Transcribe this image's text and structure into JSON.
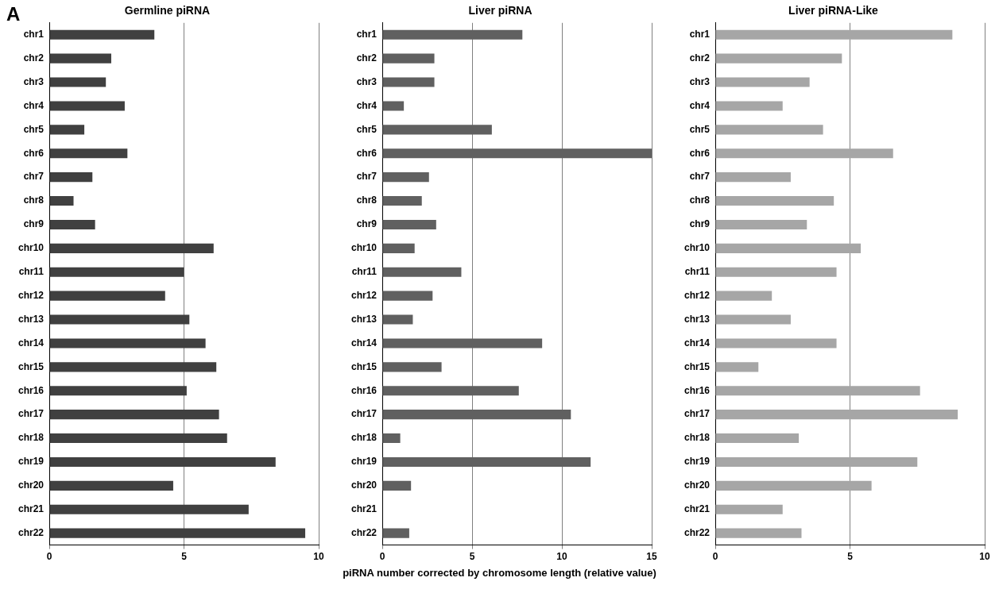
{
  "chart_data": [
    {
      "type": "bar",
      "orientation": "horizontal",
      "title": "Germline piRNA",
      "annotations": [
        "A"
      ],
      "categories": [
        "chr1",
        "chr2",
        "chr3",
        "chr4",
        "chr5",
        "chr6",
        "chr7",
        "chr8",
        "chr9",
        "chr10",
        "chr11",
        "chr12",
        "chr13",
        "chr14",
        "chr15",
        "chr16",
        "chr17",
        "chr18",
        "chr19",
        "chr20",
        "chr21",
        "chr22"
      ],
      "values": [
        3.9,
        2.3,
        2.1,
        2.8,
        1.3,
        2.9,
        1.6,
        0.9,
        1.7,
        6.1,
        5.0,
        4.3,
        5.2,
        5.8,
        6.2,
        5.1,
        6.3,
        6.6,
        8.4,
        4.6,
        7.4,
        9.5
      ],
      "color": "#404040",
      "xlim": [
        0,
        10
      ],
      "xticks": [
        0,
        5,
        10
      ],
      "grid": "x"
    },
    {
      "type": "bar",
      "orientation": "horizontal",
      "title": "Liver piRNA",
      "xlabel": "piRNA number corrected by chromosome length (relative value)",
      "categories": [
        "chr1",
        "chr2",
        "chr3",
        "chr4",
        "chr5",
        "chr6",
        "chr7",
        "chr8",
        "chr9",
        "chr10",
        "chr11",
        "chr12",
        "chr13",
        "chr14",
        "chr15",
        "chr16",
        "chr17",
        "chr18",
        "chr19",
        "chr20",
        "chr21",
        "chr22"
      ],
      "values": [
        7.8,
        2.9,
        2.9,
        1.2,
        6.1,
        15.0,
        2.6,
        2.2,
        3.0,
        1.8,
        4.4,
        2.8,
        1.7,
        8.9,
        3.3,
        7.6,
        10.5,
        1.0,
        11.6,
        1.6,
        0,
        1.5
      ],
      "color": "#606060",
      "xlim": [
        0,
        15
      ],
      "xticks": [
        0,
        5,
        10,
        15
      ],
      "grid": "x"
    },
    {
      "type": "bar",
      "orientation": "horizontal",
      "title": "Liver piRNA-Like",
      "categories": [
        "chr1",
        "chr2",
        "chr3",
        "chr4",
        "chr5",
        "chr6",
        "chr7",
        "chr8",
        "chr9",
        "chr10",
        "chr11",
        "chr12",
        "chr13",
        "chr14",
        "chr15",
        "chr16",
        "chr17",
        "chr18",
        "chr19",
        "chr20",
        "chr21",
        "chr22"
      ],
      "values": [
        8.8,
        4.7,
        3.5,
        2.5,
        4.0,
        6.6,
        2.8,
        4.4,
        3.4,
        5.4,
        4.5,
        2.1,
        2.8,
        4.5,
        1.6,
        7.6,
        9.0,
        3.1,
        7.5,
        5.8,
        2.5,
        3.2
      ],
      "color": "#a6a6a6",
      "xlim": [
        0,
        10
      ],
      "xticks": [
        0,
        5,
        10
      ],
      "grid": "x"
    }
  ]
}
